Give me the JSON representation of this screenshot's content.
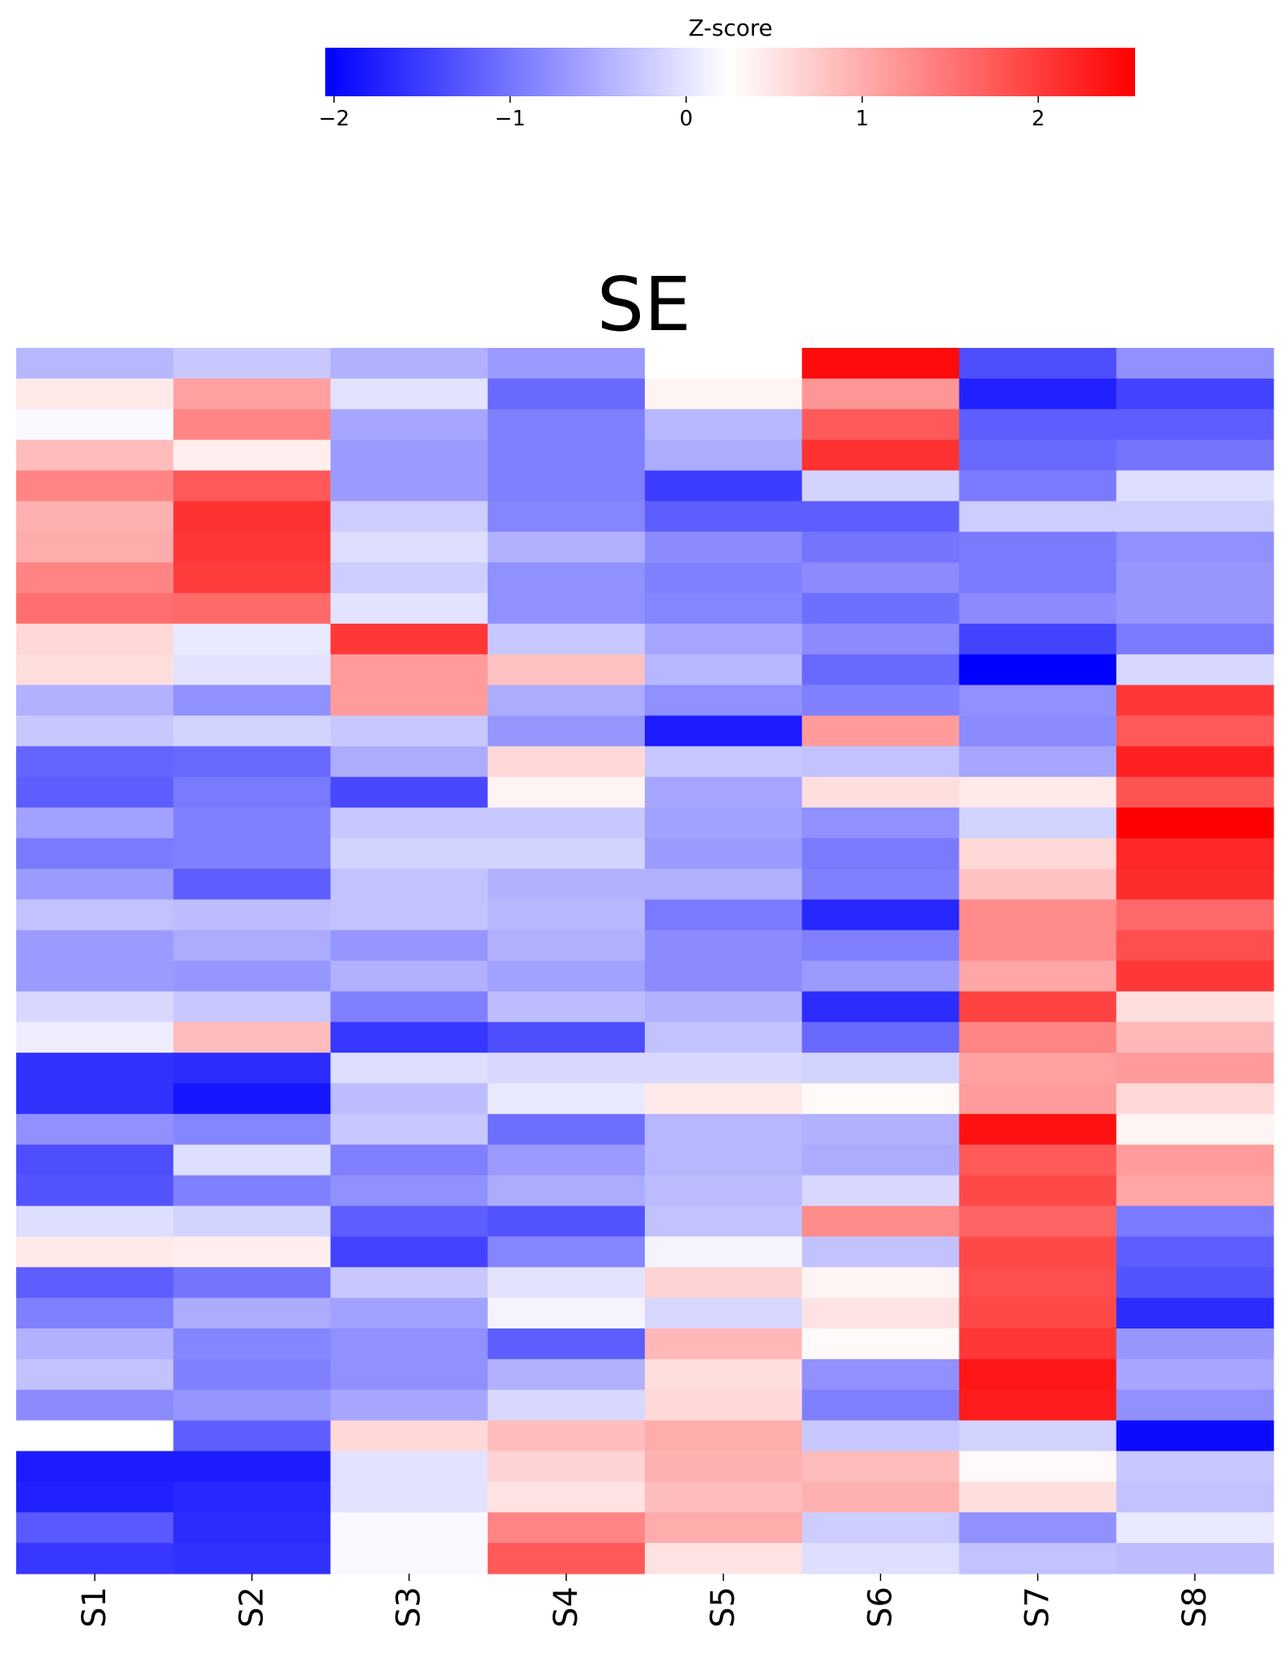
{
  "chart_data": {
    "type": "heatmap",
    "title": "SE",
    "colorbar": {
      "label": "Z-score",
      "range": [
        -2.05,
        2.55
      ],
      "ticks": [
        -2,
        -1,
        0,
        1,
        2
      ],
      "tick_labels": [
        "−2",
        "−1",
        "0",
        "1",
        "2"
      ],
      "placement": "top",
      "colors": {
        "low": "#0000ff",
        "mid": "#ffffff",
        "high": "#ff0000"
      }
    },
    "columns": [
      "S1",
      "S2",
      "S3",
      "S4",
      "S5",
      "S6",
      "S7",
      "S8"
    ],
    "grid": false,
    "values": [
      [
        -0.4,
        -0.25,
        -0.45,
        -0.65,
        0.25,
        2.45,
        -1.35,
        -0.75
      ],
      [
        0.45,
        1.1,
        0.0,
        -1.1,
        0.35,
        1.2,
        -1.75,
        -1.45
      ],
      [
        0.2,
        1.35,
        -0.55,
        -0.9,
        -0.4,
        1.75,
        -1.2,
        -1.2
      ],
      [
        0.85,
        0.4,
        -0.65,
        -0.9,
        -0.5,
        2.1,
        -1.1,
        -1.0
      ],
      [
        1.35,
        1.75,
        -0.65,
        -0.9,
        -1.5,
        -0.15,
        -0.95,
        -0.05
      ],
      [
        0.95,
        2.1,
        -0.2,
        -0.85,
        -1.2,
        -1.2,
        -0.2,
        -0.2
      ],
      [
        1.0,
        2.05,
        -0.05,
        -0.45,
        -0.8,
        -1.0,
        -0.95,
        -0.75
      ],
      [
        1.35,
        2.0,
        -0.2,
        -0.75,
        -0.9,
        -0.8,
        -0.95,
        -0.7
      ],
      [
        1.55,
        1.6,
        0.0,
        -0.75,
        -0.85,
        -1.05,
        -0.8,
        -0.7
      ],
      [
        0.6,
        0.05,
        2.05,
        -0.25,
        -0.55,
        -0.8,
        -1.45,
        -0.95
      ],
      [
        0.55,
        0.0,
        1.15,
        0.8,
        -0.4,
        -1.1,
        -2.05,
        -0.1
      ],
      [
        -0.45,
        -0.75,
        1.15,
        -0.5,
        -0.75,
        -0.9,
        -0.75,
        2.05
      ],
      [
        -0.25,
        -0.15,
        -0.25,
        -0.7,
        -1.8,
        1.15,
        -0.8,
        1.75
      ],
      [
        -1.15,
        -1.1,
        -0.5,
        0.6,
        -0.25,
        -0.3,
        -0.55,
        2.25
      ],
      [
        -1.2,
        -0.95,
        -1.4,
        0.35,
        -0.55,
        0.55,
        0.45,
        1.8
      ],
      [
        -0.6,
        -0.9,
        -0.25,
        -0.25,
        -0.6,
        -0.75,
        -0.15,
        2.55
      ],
      [
        -0.95,
        -0.9,
        -0.15,
        -0.15,
        -0.65,
        -0.95,
        0.6,
        2.2
      ],
      [
        -0.65,
        -1.2,
        -0.3,
        -0.45,
        -0.45,
        -0.9,
        0.8,
        2.15
      ],
      [
        -0.3,
        -0.35,
        -0.3,
        -0.4,
        -0.95,
        -1.7,
        1.3,
        1.6
      ],
      [
        -0.65,
        -0.5,
        -0.7,
        -0.45,
        -0.8,
        -0.9,
        1.3,
        1.85
      ],
      [
        -0.65,
        -0.7,
        -0.45,
        -0.6,
        -0.8,
        -0.65,
        1.05,
        2.05
      ],
      [
        -0.1,
        -0.25,
        -0.9,
        -0.35,
        -0.45,
        -1.65,
        1.95,
        0.55
      ],
      [
        0.1,
        0.85,
        -1.55,
        -1.35,
        -0.3,
        -1.1,
        1.35,
        0.9
      ],
      [
        -1.6,
        -1.65,
        -0.05,
        -0.1,
        -0.1,
        -0.15,
        1.1,
        1.15
      ],
      [
        -1.6,
        -1.85,
        -0.35,
        0.05,
        0.45,
        0.3,
        1.15,
        0.6
      ],
      [
        -0.75,
        -0.85,
        -0.25,
        -1.05,
        -0.4,
        -0.45,
        2.4,
        0.35
      ],
      [
        -1.35,
        -0.05,
        -0.9,
        -0.65,
        -0.4,
        -0.5,
        1.75,
        1.15
      ],
      [
        -1.3,
        -0.9,
        -0.75,
        -0.5,
        -0.35,
        -0.1,
        1.9,
        1.05
      ],
      [
        -0.05,
        -0.15,
        -1.2,
        -1.3,
        -0.3,
        1.3,
        1.65,
        -0.95
      ],
      [
        0.45,
        0.4,
        -1.45,
        -0.85,
        0.15,
        -0.3,
        1.9,
        -1.2
      ],
      [
        -1.2,
        -1.0,
        -0.25,
        0.0,
        0.65,
        0.35,
        1.85,
        -1.3
      ],
      [
        -0.9,
        -0.5,
        -0.6,
        0.15,
        -0.1,
        0.5,
        1.9,
        -1.65
      ],
      [
        -0.45,
        -0.85,
        -0.75,
        -1.2,
        0.9,
        0.3,
        2.05,
        -0.7
      ],
      [
        -0.3,
        -0.9,
        -0.75,
        -0.45,
        0.55,
        -0.75,
        2.35,
        -0.55
      ],
      [
        -0.8,
        -0.7,
        -0.55,
        -0.1,
        0.6,
        -0.9,
        2.3,
        -0.75
      ],
      [
        0.25,
        -1.2,
        0.6,
        0.85,
        1.0,
        -0.25,
        -0.15,
        -1.95
      ],
      [
        -1.8,
        -1.8,
        0.0,
        0.65,
        0.95,
        0.85,
        0.3,
        -0.25
      ],
      [
        -1.75,
        -1.7,
        0.0,
        0.5,
        0.85,
        0.95,
        0.55,
        -0.3
      ],
      [
        -1.25,
        -1.65,
        0.2,
        1.35,
        1.0,
        -0.2,
        -0.75,
        0.05
      ],
      [
        -1.55,
        -1.6,
        0.2,
        1.75,
        0.5,
        -0.05,
        -0.3,
        -0.35
      ]
    ]
  }
}
